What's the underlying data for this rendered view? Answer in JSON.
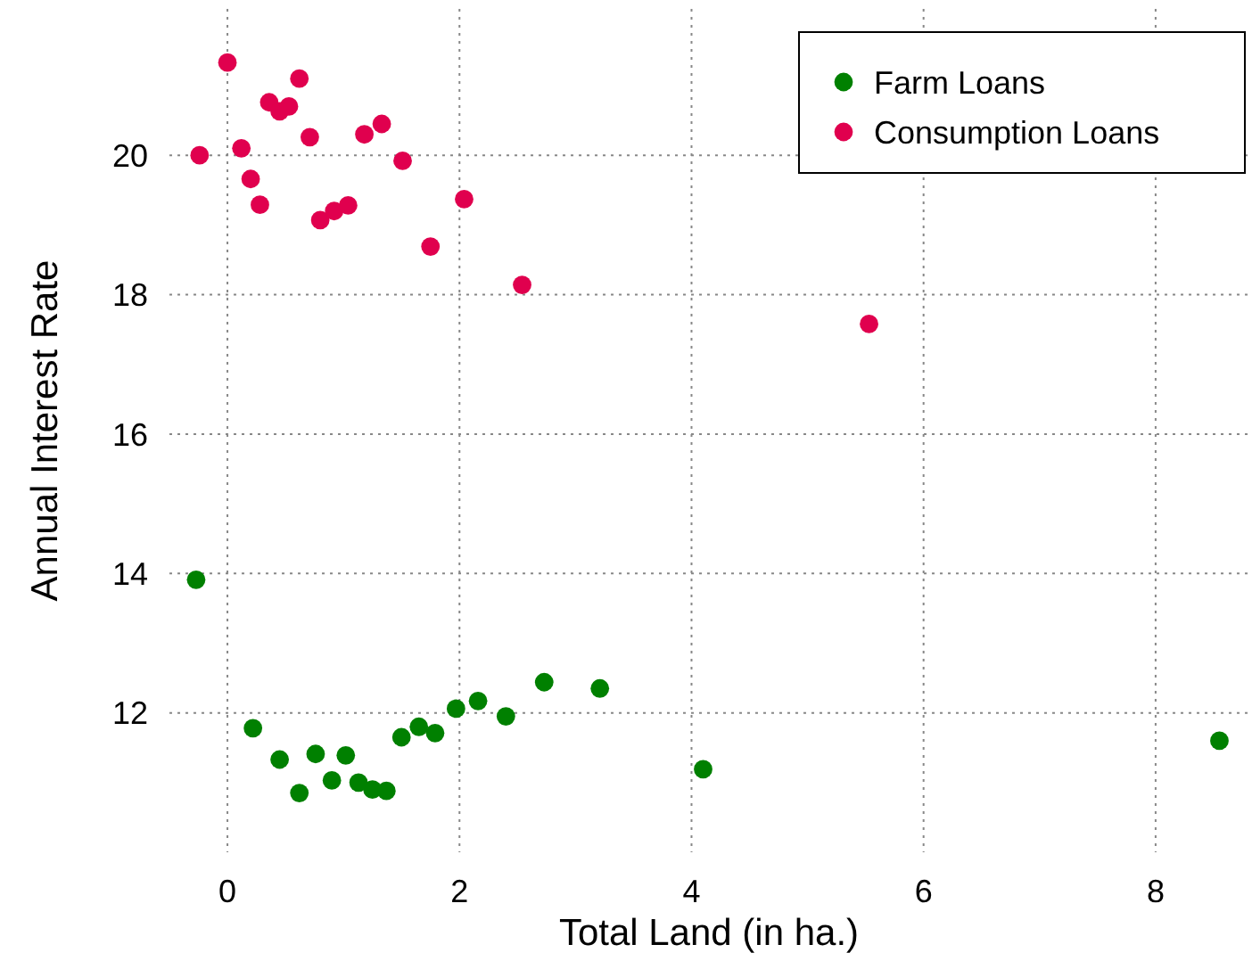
{
  "chart_data": {
    "type": "scatter",
    "xlabel": "Total Land (in ha.)",
    "ylabel": "Annual Interest Rate",
    "xlim": [
      -0.5,
      8.8
    ],
    "ylim": [
      10,
      22.1
    ],
    "xticks": [
      0,
      2,
      4,
      6,
      8
    ],
    "yticks": [
      12,
      14,
      16,
      18,
      20
    ],
    "grid": true,
    "legend": "top right",
    "marker": "circle",
    "series": [
      {
        "name": "Farm Loans",
        "color": "#008000",
        "x": [
          -0.27,
          0.22,
          0.45,
          0.62,
          0.76,
          0.9,
          1.02,
          1.13,
          1.25,
          1.37,
          1.5,
          1.65,
          1.79,
          1.97,
          2.16,
          2.4,
          2.73,
          3.21,
          4.1,
          8.55
        ],
        "values": [
          13.91,
          11.78,
          11.33,
          10.85,
          11.41,
          11.03,
          11.39,
          11.0,
          10.9,
          10.88,
          11.65,
          11.8,
          11.71,
          12.06,
          12.17,
          11.95,
          12.44,
          12.35,
          11.19,
          11.6
        ]
      },
      {
        "name": "Consumption Loans",
        "color": "#e0004e",
        "x": [
          -0.24,
          0.0,
          0.12,
          0.2,
          0.28,
          0.36,
          0.45,
          0.53,
          0.62,
          0.71,
          0.8,
          0.92,
          1.04,
          1.18,
          1.33,
          1.51,
          1.75,
          2.04,
          2.54,
          5.53
        ],
        "values": [
          20.0,
          21.33,
          20.1,
          19.66,
          19.29,
          20.76,
          20.63,
          20.7,
          21.1,
          20.26,
          19.07,
          19.2,
          19.28,
          20.3,
          20.45,
          19.92,
          18.69,
          19.37,
          18.14,
          17.58
        ]
      }
    ]
  }
}
